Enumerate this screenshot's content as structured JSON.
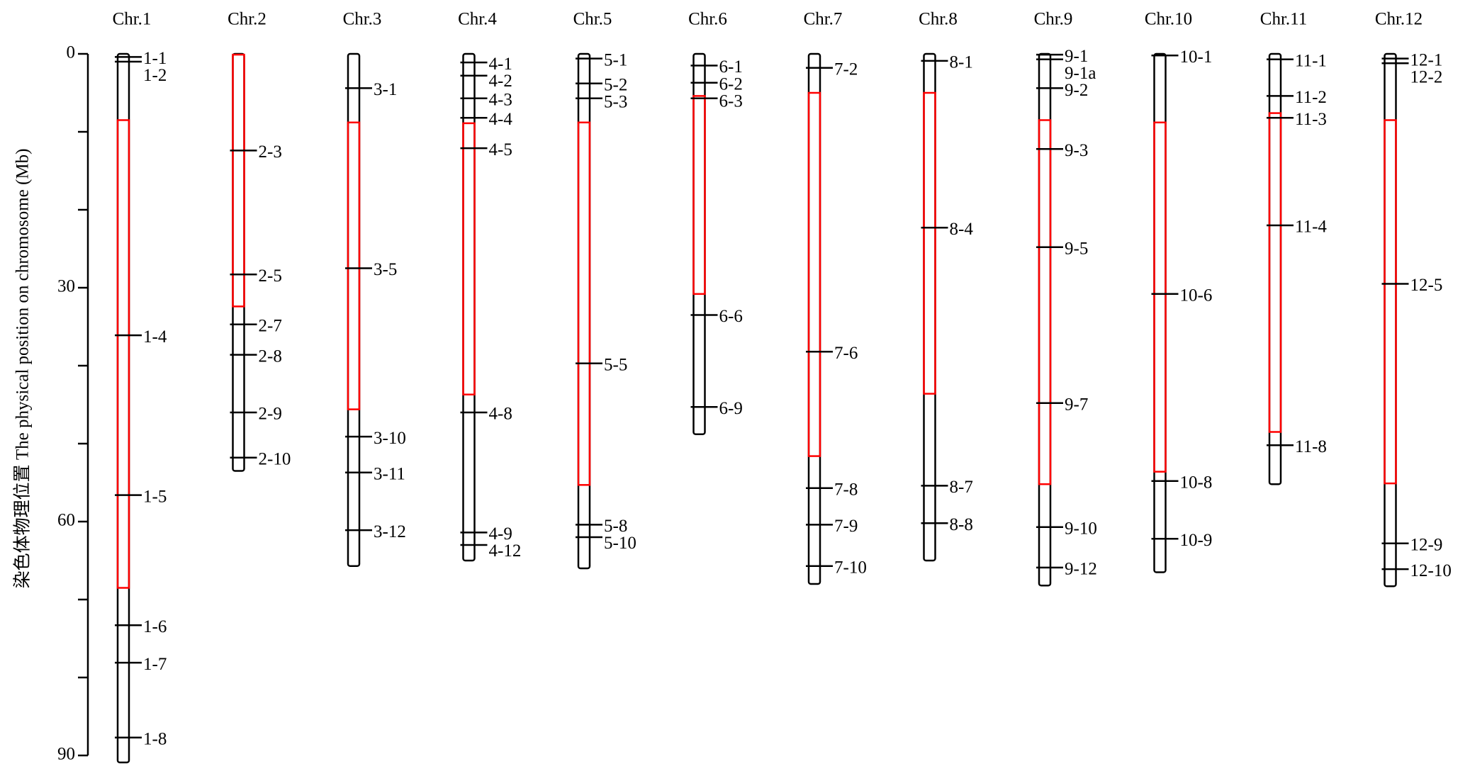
{
  "chart_data": {
    "type": "chromosome_map",
    "y_label": "染色体物理位置 The physical position on chromosome (Mb)",
    "ylim": [
      0,
      90
    ],
    "yticks": [
      0,
      30,
      60,
      90
    ],
    "minor_yticks": [
      10,
      20,
      40,
      50,
      70,
      80
    ],
    "outline_color": "#000000",
    "region_color": "#ff0000",
    "chromosomes": [
      {
        "name": "Chr.1",
        "length": 90.9,
        "region": [
          8.5,
          68.5
        ],
        "markers": [
          {
            "label": "1-1",
            "position": 0.4
          },
          {
            "label": "1-2",
            "position": 1.0
          },
          {
            "label": "1-4",
            "position": 36.1
          },
          {
            "label": "1-5",
            "position": 56.6
          },
          {
            "label": "1-6",
            "position": 73.3
          },
          {
            "label": "1-7",
            "position": 78.1
          },
          {
            "label": "1-8",
            "position": 87.7
          }
        ]
      },
      {
        "name": "Chr.2",
        "length": 53.5,
        "region": [
          0.1,
          32.4
        ],
        "markers": [
          {
            "label": "2-3",
            "position": 12.4
          },
          {
            "label": "2-5",
            "position": 28.3
          },
          {
            "label": "2-7",
            "position": 34.7
          },
          {
            "label": "2-8",
            "position": 38.6
          },
          {
            "label": "2-9",
            "position": 46.0
          },
          {
            "label": "2-10",
            "position": 51.8
          }
        ]
      },
      {
        "name": "Chr.3",
        "length": 65.7,
        "region": [
          8.8,
          45.6
        ],
        "markers": [
          {
            "label": "3-1",
            "position": 4.4
          },
          {
            "label": "3-5",
            "position": 27.5
          },
          {
            "label": "3-10",
            "position": 49.1
          },
          {
            "label": "3-11",
            "position": 53.7
          },
          {
            "label": "3-12",
            "position": 61.1
          }
        ]
      },
      {
        "name": "Chr.4",
        "length": 65.0,
        "region": [
          8.9,
          43.7
        ],
        "markers": [
          {
            "label": "4-1",
            "position": 1.1
          },
          {
            "label": "4-2",
            "position": 2.8
          },
          {
            "label": "4-3",
            "position": 5.7
          },
          {
            "label": "4-4",
            "position": 8.2
          },
          {
            "label": "4-5",
            "position": 12.1
          },
          {
            "label": "4-8",
            "position": 46.0
          },
          {
            "label": "4-9",
            "position": 61.4
          },
          {
            "label": "4-12",
            "position": 63.0
          }
        ]
      },
      {
        "name": "Chr.5",
        "length": 66.0,
        "region": [
          8.8,
          55.3
        ],
        "markers": [
          {
            "label": "5-1",
            "position": 0.6
          },
          {
            "label": "5-2",
            "position": 3.8
          },
          {
            "label": "5-3",
            "position": 5.7
          },
          {
            "label": "5-5",
            "position": 39.7
          },
          {
            "label": "5-8",
            "position": 60.4
          },
          {
            "label": "5-10",
            "position": 62.0
          }
        ]
      },
      {
        "name": "Chr.6",
        "length": 48.8,
        "region": [
          5.4,
          30.8
        ],
        "markers": [
          {
            "label": "6-1",
            "position": 1.5
          },
          {
            "label": "6-2",
            "position": 3.7
          },
          {
            "label": "6-3",
            "position": 5.7
          },
          {
            "label": "6-6",
            "position": 33.5
          },
          {
            "label": "6-9",
            "position": 45.3
          }
        ]
      },
      {
        "name": "Chr.7",
        "length": 68.0,
        "region": [
          5.0,
          51.6
        ],
        "markers": [
          {
            "label": "7-2",
            "position": 1.8
          },
          {
            "label": "7-6",
            "position": 38.2
          },
          {
            "label": "7-8",
            "position": 55.7
          },
          {
            "label": "7-9",
            "position": 60.4
          },
          {
            "label": "7-10",
            "position": 65.7
          }
        ]
      },
      {
        "name": "Chr.8",
        "length": 65.0,
        "region": [
          5.0,
          43.6
        ],
        "markers": [
          {
            "label": "8-1",
            "position": 0.9
          },
          {
            "label": "8-4",
            "position": 22.3
          },
          {
            "label": "8-7",
            "position": 55.4
          },
          {
            "label": "8-8",
            "position": 60.2
          }
        ]
      },
      {
        "name": "Chr.9",
        "length": 68.2,
        "region": [
          8.5,
          55.2
        ],
        "markers": [
          {
            "label": "9-1",
            "position": 0.1
          },
          {
            "label": "9-1a",
            "position": 0.7
          },
          {
            "label": "9-2",
            "position": 4.4
          },
          {
            "label": "9-3",
            "position": 12.2
          },
          {
            "label": "9-5",
            "position": 24.8
          },
          {
            "label": "9-7",
            "position": 44.8
          },
          {
            "label": "9-10",
            "position": 60.7
          },
          {
            "label": "9-12",
            "position": 65.9
          }
        ]
      },
      {
        "name": "Chr.10",
        "length": 66.5,
        "region": [
          8.8,
          53.6
        ],
        "markers": [
          {
            "label": "10-1",
            "position": 0.2
          },
          {
            "label": "10-6",
            "position": 30.8
          },
          {
            "label": "10-8",
            "position": 54.8
          },
          {
            "label": "10-9",
            "position": 62.2
          }
        ]
      },
      {
        "name": "Chr.11",
        "length": 55.2,
        "region": [
          7.6,
          48.5
        ],
        "markers": [
          {
            "label": "11-1",
            "position": 0.7
          },
          {
            "label": "11-2",
            "position": 5.4
          },
          {
            "label": "11-3",
            "position": 8.2
          },
          {
            "label": "11-4",
            "position": 22.0
          },
          {
            "label": "11-8",
            "position": 50.2
          }
        ]
      },
      {
        "name": "Chr.12",
        "length": 68.3,
        "region": [
          8.5,
          55.1
        ],
        "markers": [
          {
            "label": "12-1",
            "position": 0.6
          },
          {
            "label": "12-2",
            "position": 1.2
          },
          {
            "label": "12-5",
            "position": 29.5
          },
          {
            "label": "12-9",
            "position": 62.8
          },
          {
            "label": "12-10",
            "position": 66.1
          }
        ]
      }
    ]
  }
}
